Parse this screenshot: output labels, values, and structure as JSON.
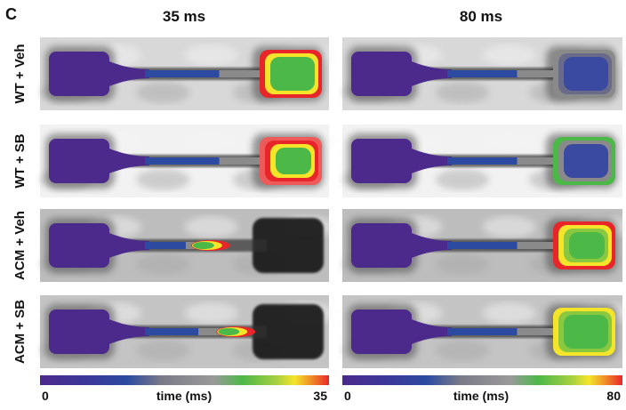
{
  "panel_label": "C",
  "columns": [
    {
      "title": "35 ms",
      "colorbar": {
        "min": "0",
        "label": "time (ms)",
        "max": "35"
      }
    },
    {
      "title": "80 ms",
      "colorbar": {
        "min": "0",
        "label": "time (ms)",
        "max": "80"
      }
    }
  ],
  "rows": [
    {
      "label": "WT + Veh"
    },
    {
      "label": "WT + SB"
    },
    {
      "label": "ACM + Veh"
    },
    {
      "label": "ACM + SB"
    }
  ]
}
